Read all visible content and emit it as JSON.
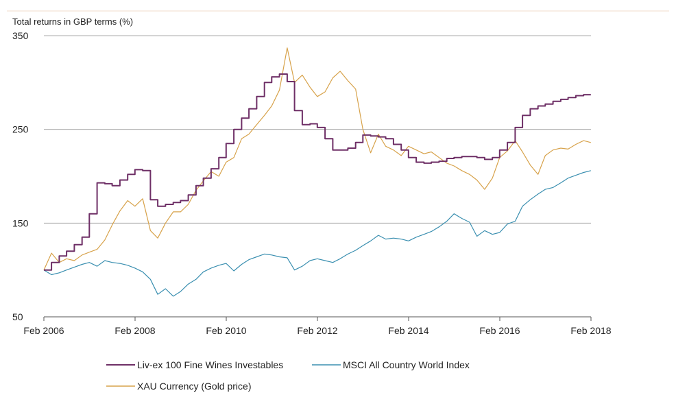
{
  "colors": {
    "wine": "#6e2f66",
    "msci": "#3a8fb0",
    "gold": "#d7a24a",
    "grid": "#a8a8a8",
    "axis": "#555555",
    "top_rule": "#f0dccb"
  },
  "chart_data": {
    "type": "line",
    "title": "",
    "ylabel": "Total returns in GBP terms (%)",
    "xlabel": "",
    "ylim": [
      50,
      350
    ],
    "yticks": [
      50,
      150,
      250,
      350
    ],
    "xlim": [
      2006.083,
      2018.083
    ],
    "xticks": [
      {
        "value": 2006.083,
        "label": "Feb 2006"
      },
      {
        "value": 2008.083,
        "label": "Feb 2008"
      },
      {
        "value": 2010.083,
        "label": "Feb 2010"
      },
      {
        "value": 2012.083,
        "label": "Feb 2012"
      },
      {
        "value": 2014.083,
        "label": "Feb 2014"
      },
      {
        "value": 2016.083,
        "label": "Feb 2016"
      },
      {
        "value": 2018.083,
        "label": "Feb 2018"
      }
    ],
    "grid": true,
    "legend_position": "bottom",
    "series": [
      {
        "name": "Liv-ex 100 Fine Wines Investables",
        "color_key": "wine",
        "step": true,
        "x": [
          2006.083,
          2006.25,
          2006.42,
          2006.58,
          2006.75,
          2006.92,
          2007.08,
          2007.25,
          2007.42,
          2007.58,
          2007.75,
          2007.92,
          2008.08,
          2008.25,
          2008.42,
          2008.58,
          2008.75,
          2008.92,
          2009.08,
          2009.25,
          2009.42,
          2009.58,
          2009.75,
          2009.92,
          2010.08,
          2010.25,
          2010.42,
          2010.58,
          2010.75,
          2010.92,
          2011.08,
          2011.25,
          2011.42,
          2011.58,
          2011.75,
          2011.92,
          2012.08,
          2012.25,
          2012.42,
          2012.58,
          2012.75,
          2012.92,
          2013.08,
          2013.25,
          2013.42,
          2013.58,
          2013.75,
          2013.92,
          2014.08,
          2014.25,
          2014.42,
          2014.58,
          2014.75,
          2014.92,
          2015.08,
          2015.25,
          2015.42,
          2015.58,
          2015.75,
          2015.92,
          2016.08,
          2016.25,
          2016.42,
          2016.58,
          2016.75,
          2016.92,
          2017.08,
          2017.25,
          2017.42,
          2017.58,
          2017.75,
          2017.92,
          2018.08
        ],
        "values": [
          100,
          108,
          115,
          120,
          127,
          135,
          160,
          193,
          192,
          190,
          196,
          202,
          207,
          206,
          175,
          168,
          170,
          172,
          174,
          180,
          190,
          198,
          208,
          220,
          235,
          250,
          262,
          272,
          285,
          300,
          306,
          309,
          301,
          270,
          255,
          256,
          252,
          240,
          228,
          228,
          230,
          236,
          244,
          243,
          242,
          240,
          234,
          228,
          220,
          215,
          214,
          215,
          216,
          219,
          220,
          221,
          221,
          220,
          218,
          220,
          228,
          236,
          252,
          265,
          272,
          275,
          277,
          280,
          282,
          284,
          286,
          287,
          287
        ]
      },
      {
        "name": "MSCI All Country World Index",
        "color_key": "msci",
        "step": false,
        "x": [
          2006.083,
          2006.25,
          2006.42,
          2006.58,
          2006.75,
          2006.92,
          2007.08,
          2007.25,
          2007.42,
          2007.58,
          2007.75,
          2007.92,
          2008.08,
          2008.25,
          2008.42,
          2008.58,
          2008.75,
          2008.92,
          2009.08,
          2009.25,
          2009.42,
          2009.58,
          2009.75,
          2009.92,
          2010.08,
          2010.25,
          2010.42,
          2010.58,
          2010.75,
          2010.92,
          2011.08,
          2011.25,
          2011.42,
          2011.58,
          2011.75,
          2011.92,
          2012.08,
          2012.25,
          2012.42,
          2012.58,
          2012.75,
          2012.92,
          2013.08,
          2013.25,
          2013.42,
          2013.58,
          2013.75,
          2013.92,
          2014.08,
          2014.25,
          2014.42,
          2014.58,
          2014.75,
          2014.92,
          2015.08,
          2015.25,
          2015.42,
          2015.58,
          2015.75,
          2015.92,
          2016.08,
          2016.25,
          2016.42,
          2016.58,
          2016.75,
          2016.92,
          2017.08,
          2017.25,
          2017.42,
          2017.58,
          2017.75,
          2017.92,
          2018.08
        ],
        "values": [
          100,
          95,
          97,
          100,
          103,
          106,
          108,
          104,
          110,
          108,
          107,
          105,
          102,
          98,
          90,
          74,
          80,
          72,
          77,
          85,
          90,
          98,
          102,
          105,
          107,
          99,
          106,
          111,
          114,
          117,
          116,
          114,
          113,
          100,
          104,
          110,
          112,
          110,
          108,
          112,
          117,
          121,
          126,
          131,
          137,
          133,
          134,
          133,
          131,
          135,
          138,
          141,
          146,
          152,
          160,
          155,
          151,
          136,
          142,
          138,
          140,
          149,
          152,
          168,
          175,
          181,
          186,
          188,
          193,
          198,
          201,
          204,
          206
        ]
      },
      {
        "name": "XAU Currency (Gold price)",
        "color_key": "gold",
        "step": false,
        "x": [
          2006.083,
          2006.25,
          2006.42,
          2006.58,
          2006.75,
          2006.92,
          2007.08,
          2007.25,
          2007.42,
          2007.58,
          2007.75,
          2007.92,
          2008.08,
          2008.25,
          2008.42,
          2008.58,
          2008.75,
          2008.92,
          2009.08,
          2009.25,
          2009.42,
          2009.58,
          2009.75,
          2009.92,
          2010.08,
          2010.25,
          2010.42,
          2010.58,
          2010.75,
          2010.92,
          2011.08,
          2011.25,
          2011.42,
          2011.58,
          2011.75,
          2011.92,
          2012.08,
          2012.25,
          2012.42,
          2012.58,
          2012.75,
          2012.92,
          2013.08,
          2013.25,
          2013.42,
          2013.58,
          2013.75,
          2013.92,
          2014.08,
          2014.25,
          2014.42,
          2014.58,
          2014.75,
          2014.92,
          2015.08,
          2015.25,
          2015.42,
          2015.58,
          2015.75,
          2015.92,
          2016.08,
          2016.25,
          2016.42,
          2016.58,
          2016.75,
          2016.92,
          2017.08,
          2017.25,
          2017.42,
          2017.58,
          2017.75,
          2017.92,
          2018.08
        ],
        "values": [
          100,
          118,
          108,
          112,
          110,
          116,
          119,
          122,
          132,
          148,
          163,
          174,
          168,
          176,
          142,
          134,
          150,
          162,
          162,
          170,
          185,
          195,
          205,
          200,
          215,
          220,
          240,
          245,
          255,
          265,
          275,
          292,
          337,
          300,
          308,
          295,
          285,
          290,
          305,
          312,
          302,
          293,
          250,
          225,
          245,
          232,
          228,
          222,
          232,
          228,
          224,
          226,
          220,
          214,
          211,
          206,
          202,
          196,
          186,
          198,
          220,
          227,
          238,
          226,
          212,
          202,
          222,
          228,
          230,
          229,
          234,
          238,
          236
        ]
      }
    ]
  }
}
